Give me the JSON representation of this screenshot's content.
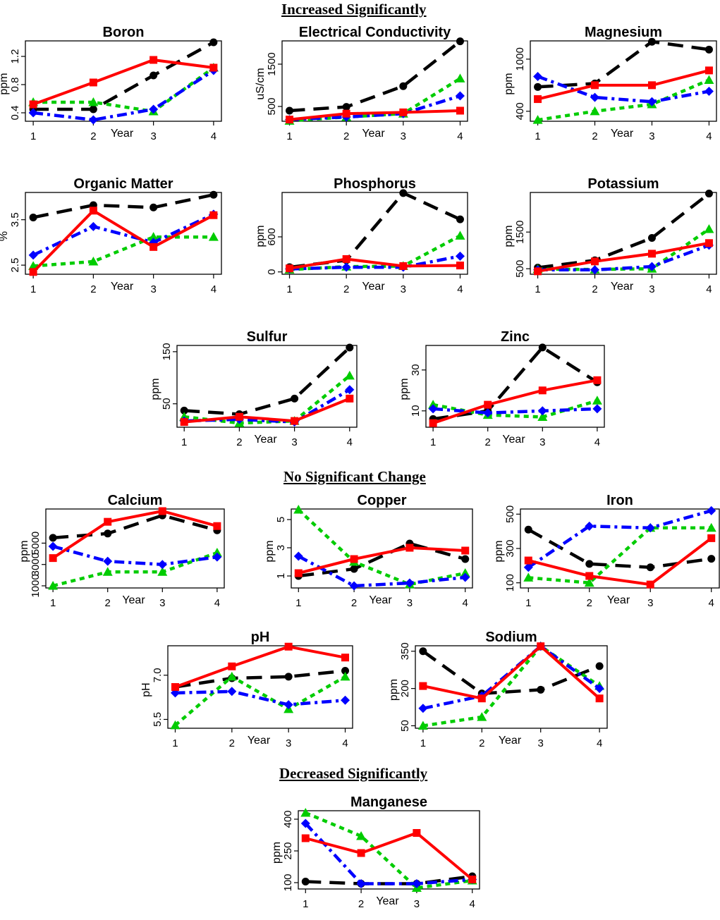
{
  "sections": [
    {
      "label": "Increased Significantly"
    },
    {
      "label": "No Significant Change"
    },
    {
      "label": "Decreased Significantly"
    }
  ],
  "colors": {
    "black": "#000000",
    "red": "#ff0000",
    "blue": "#0000ff",
    "green": "#00cc00"
  },
  "chart_data": [
    {
      "type": "line",
      "title": "Boron",
      "xlabel": "Year",
      "ylabel": "ppm",
      "x": [
        1,
        2,
        3,
        4
      ],
      "ylim": [
        0.28,
        1.42
      ],
      "yticks": [
        "0.4",
        "0.8",
        "1.2"
      ],
      "ytick_values": [
        0.4,
        0.8,
        1.2
      ],
      "series": [
        {
          "name": "black",
          "values": [
            0.45,
            0.45,
            0.93,
            1.4
          ]
        },
        {
          "name": "red",
          "values": [
            0.52,
            0.83,
            1.15,
            1.04
          ]
        },
        {
          "name": "blue",
          "values": [
            0.4,
            0.3,
            0.45,
            1.0
          ]
        },
        {
          "name": "green",
          "values": [
            0.55,
            0.55,
            0.42,
            1.04
          ]
        }
      ]
    },
    {
      "type": "line",
      "title": "Electrical Conductivity",
      "xlabel": "Year",
      "ylabel": "uS/cm",
      "x": [
        1,
        2,
        3,
        4
      ],
      "ylim": [
        150,
        2050
      ],
      "yticks": [
        "500",
        "1500"
      ],
      "ytick_values": [
        500,
        1500
      ],
      "series": [
        {
          "name": "black",
          "values": [
            400,
            490,
            980,
            2040
          ]
        },
        {
          "name": "red",
          "values": [
            190,
            330,
            360,
            400
          ]
        },
        {
          "name": "blue",
          "values": [
            190,
            250,
            330,
            750
          ]
        },
        {
          "name": "green",
          "values": [
            160,
            250,
            330,
            1160
          ]
        }
      ]
    },
    {
      "type": "line",
      "title": "Magnesium",
      "xlabel": "Year",
      "ylabel": "ppm",
      "x": [
        1,
        2,
        3,
        4
      ],
      "ylim": [
        285,
        1210
      ],
      "yticks": [
        "400",
        "1000"
      ],
      "ytick_values": [
        400,
        1000
      ],
      "series": [
        {
          "name": "black",
          "values": [
            680,
            720,
            1200,
            1110
          ]
        },
        {
          "name": "red",
          "values": [
            540,
            700,
            700,
            870
          ]
        },
        {
          "name": "blue",
          "values": [
            800,
            560,
            510,
            630
          ]
        },
        {
          "name": "green",
          "values": [
            300,
            400,
            480,
            760
          ]
        }
      ]
    },
    {
      "type": "line",
      "title": "Organic Matter",
      "xlabel": "Year",
      "ylabel": "%",
      "x": [
        1,
        2,
        3,
        4
      ],
      "ylim": [
        2.3,
        4.1
      ],
      "yticks": [
        "2.5",
        "3.5"
      ],
      "ytick_values": [
        2.5,
        3.5
      ],
      "series": [
        {
          "name": "black",
          "values": [
            3.55,
            3.82,
            3.77,
            4.05
          ]
        },
        {
          "name": "red",
          "values": [
            2.35,
            3.7,
            2.9,
            3.6
          ]
        },
        {
          "name": "blue",
          "values": [
            2.72,
            3.35,
            3.0,
            3.62
          ]
        },
        {
          "name": "green",
          "values": [
            2.48,
            2.58,
            3.12,
            3.12
          ]
        }
      ]
    },
    {
      "type": "line",
      "title": "Phosphorus",
      "xlabel": "Year",
      "ylabel": "ppm",
      "x": [
        1,
        2,
        3,
        4
      ],
      "ylim": [
        -40,
        1360
      ],
      "yticks": [
        "0",
        "600"
      ],
      "ytick_values": [
        0,
        600
      ],
      "series": [
        {
          "name": "black",
          "values": [
            80,
            200,
            1350,
            900
          ]
        },
        {
          "name": "red",
          "values": [
            60,
            220,
            100,
            110
          ]
        },
        {
          "name": "blue",
          "values": [
            50,
            80,
            80,
            270
          ]
        },
        {
          "name": "green",
          "values": [
            40,
            90,
            100,
            620
          ]
        }
      ]
    },
    {
      "type": "line",
      "title": "Potassium",
      "xlabel": "Year",
      "ylabel": "ppm",
      "x": [
        1,
        2,
        3,
        4
      ],
      "ylim": [
        350,
        2580
      ],
      "yticks": [
        "500",
        "1500"
      ],
      "ytick_values": [
        500,
        1500
      ],
      "series": [
        {
          "name": "black",
          "values": [
            530,
            730,
            1340,
            2550
          ]
        },
        {
          "name": "red",
          "values": [
            430,
            700,
            910,
            1200
          ]
        },
        {
          "name": "blue",
          "values": [
            470,
            470,
            560,
            1140
          ]
        },
        {
          "name": "green",
          "values": [
            490,
            480,
            500,
            1580
          ]
        }
      ]
    },
    {
      "type": "line",
      "title": "Sulfur",
      "xlabel": "Year",
      "ylabel": "ppm",
      "x": [
        1,
        2,
        3,
        4
      ],
      "ylim": [
        5,
        162
      ],
      "yticks": [
        "50",
        "150"
      ],
      "ytick_values": [
        50,
        150
      ],
      "series": [
        {
          "name": "black",
          "values": [
            37,
            30,
            60,
            158
          ]
        },
        {
          "name": "red",
          "values": [
            15,
            25,
            17,
            60
          ]
        },
        {
          "name": "blue",
          "values": [
            17,
            20,
            15,
            77
          ]
        },
        {
          "name": "green",
          "values": [
            25,
            13,
            17,
            104
          ]
        }
      ]
    },
    {
      "type": "line",
      "title": "Zinc",
      "xlabel": "Year",
      "ylabel": "ppm",
      "x": [
        1,
        2,
        3,
        4
      ],
      "ylim": [
        2,
        42
      ],
      "yticks": [
        "10",
        "30"
      ],
      "ytick_values": [
        10,
        30
      ],
      "series": [
        {
          "name": "black",
          "values": [
            6,
            10,
            41,
            24
          ]
        },
        {
          "name": "red",
          "values": [
            4,
            13,
            20,
            25
          ]
        },
        {
          "name": "blue",
          "values": [
            11,
            9,
            10,
            11
          ]
        },
        {
          "name": "green",
          "values": [
            13,
            8,
            7,
            15
          ]
        }
      ]
    },
    {
      "type": "line",
      "title": "Calcium",
      "xlabel": "Year",
      "ylabel": "ppm",
      "x": [
        1,
        2,
        3,
        4
      ],
      "ylim": [
        800,
        8200
      ],
      "yticks": [
        "1000",
        "3000",
        "5000"
      ],
      "ytick_values": [
        1000,
        3000,
        5000
      ],
      "series": [
        {
          "name": "black",
          "values": [
            5500,
            5900,
            7600,
            6200
          ]
        },
        {
          "name": "red",
          "values": [
            3600,
            7000,
            8000,
            6600
          ]
        },
        {
          "name": "blue",
          "values": [
            4700,
            3300,
            3000,
            3700
          ]
        },
        {
          "name": "green",
          "values": [
            1000,
            2300,
            2300,
            4100
          ]
        }
      ]
    },
    {
      "type": "line",
      "title": "Copper",
      "xlabel": "Year",
      "ylabel": "ppm",
      "x": [
        1,
        2,
        3,
        4
      ],
      "ylim": [
        0.15,
        5.75
      ],
      "yticks": [
        "1",
        "3",
        "5"
      ],
      "ytick_values": [
        1,
        3,
        5
      ],
      "series": [
        {
          "name": "black",
          "values": [
            1.0,
            1.5,
            3.3,
            2.2
          ]
        },
        {
          "name": "red",
          "values": [
            1.2,
            2.2,
            3.0,
            2.8
          ]
        },
        {
          "name": "blue",
          "values": [
            2.4,
            0.3,
            0.5,
            0.9
          ]
        },
        {
          "name": "green",
          "values": [
            5.7,
            2.0,
            0.4,
            1.2
          ]
        }
      ]
    },
    {
      "type": "line",
      "title": "Iron",
      "xlabel": "Year",
      "ylabel": "ppm",
      "x": [
        1,
        2,
        3,
        4
      ],
      "ylim": [
        70,
        530
      ],
      "yticks": [
        "100",
        "300",
        "500"
      ],
      "ytick_values": [
        100,
        300,
        500
      ],
      "series": [
        {
          "name": "black",
          "values": [
            410,
            210,
            190,
            240
          ]
        },
        {
          "name": "red",
          "values": [
            230,
            140,
            90,
            360
          ]
        },
        {
          "name": "blue",
          "values": [
            190,
            430,
            420,
            520
          ]
        },
        {
          "name": "green",
          "values": [
            130,
            100,
            420,
            420
          ]
        }
      ]
    },
    {
      "type": "line",
      "title": "pH",
      "xlabel": "Year",
      "ylabel": "pH",
      "x": [
        1,
        2,
        3,
        4
      ],
      "ylim": [
        5.2,
        8.0
      ],
      "yticks": [
        "5.5",
        "7.0"
      ],
      "ytick_values": [
        5.5,
        7.0
      ],
      "series": [
        {
          "name": "black",
          "values": [
            6.6,
            6.9,
            6.95,
            7.15
          ]
        },
        {
          "name": "red",
          "values": [
            6.6,
            7.3,
            7.97,
            7.6
          ]
        },
        {
          "name": "blue",
          "values": [
            6.4,
            6.45,
            6.0,
            6.15
          ]
        },
        {
          "name": "green",
          "values": [
            5.3,
            6.95,
            5.85,
            6.95
          ]
        }
      ]
    },
    {
      "type": "line",
      "title": "Sodium",
      "xlabel": "Year",
      "ylabel": "ppm",
      "x": [
        1,
        2,
        3,
        4
      ],
      "ylim": [
        40,
        372
      ],
      "yticks": [
        "50",
        "200",
        "350"
      ],
      "ytick_values": [
        50,
        200,
        350
      ],
      "series": [
        {
          "name": "black",
          "values": [
            350,
            180,
            195,
            290
          ]
        },
        {
          "name": "red",
          "values": [
            210,
            160,
            370,
            160
          ]
        },
        {
          "name": "blue",
          "values": [
            120,
            170,
            370,
            200
          ]
        },
        {
          "name": "green",
          "values": [
            50,
            85,
            370,
            210
          ]
        }
      ]
    },
    {
      "type": "line",
      "title": "Manganese",
      "xlabel": "Year",
      "ylabel": "ppm",
      "x": [
        1,
        2,
        3,
        4
      ],
      "ylim": [
        70,
        440
      ],
      "yticks": [
        "100",
        "250",
        "400"
      ],
      "ytick_values": [
        100,
        250,
        400
      ],
      "series": [
        {
          "name": "black",
          "values": [
            105,
            95,
            95,
            130
          ]
        },
        {
          "name": "red",
          "values": [
            310,
            240,
            335,
            115
          ]
        },
        {
          "name": "blue",
          "values": [
            380,
            95,
            95,
            115
          ]
        },
        {
          "name": "green",
          "values": [
            430,
            320,
            75,
            110
          ]
        }
      ]
    }
  ]
}
